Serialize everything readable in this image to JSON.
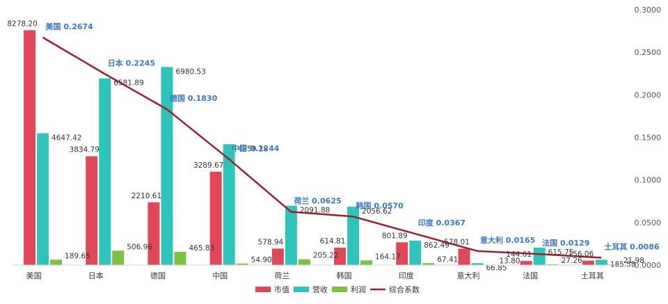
{
  "chart_data": {
    "type": "bar",
    "categories": [
      "美国",
      "日本",
      "德国",
      "中国",
      "荷兰",
      "韩国",
      "印度",
      "意大利",
      "法国",
      "土耳其"
    ],
    "series": [
      {
        "name": "市值",
        "type": "bar",
        "color": "#e0485a",
        "values": [
          8278.2,
          3834.79,
          2210.61,
          3289.67,
          578.94,
          614.81,
          801.89,
          578.01,
          144.61,
          156.06
        ],
        "labels": [
          "8278.20",
          "3834.79",
          "2210.61",
          "3289.67",
          "578.94",
          "614.81",
          "801.89",
          "578.01",
          "144.61",
          "156.06"
        ]
      },
      {
        "name": "营收",
        "type": "bar",
        "color": "#2ec4bb",
        "values": [
          4647.42,
          6581.89,
          6980.53,
          4259.28,
          2091.88,
          2056.62,
          862.49,
          66.85,
          615.75,
          185.58
        ],
        "labels": [
          "4647.42",
          "6581.89",
          "6980.53",
          "4259.28",
          "2091.88",
          "2056.62",
          "862.49",
          "66.85",
          "615.75",
          "185.58"
        ]
      },
      {
        "name": "利润",
        "type": "bar",
        "color": "#7cc242",
        "values": [
          189.65,
          506.96,
          465.83,
          54.9,
          205.22,
          164.17,
          67.41,
          13.8,
          27.26,
          21.98
        ],
        "labels": [
          "189.65",
          "506.96",
          "465.83",
          "54.90",
          "205.22",
          "164.17",
          "67.41",
          "13.80",
          "27.26",
          "21.98"
        ]
      },
      {
        "name": "综合系数",
        "type": "line",
        "axis": "right",
        "color": "#9e1f2c",
        "values": [
          0.2674,
          0.2245,
          0.183,
          0.1244,
          0.0625,
          0.057,
          0.0367,
          0.0165,
          0.0129,
          0.0086
        ],
        "labels": [
          "美国 0.2674",
          "日本 0.2245",
          "德国 0.1830",
          "中国 0.1244",
          "荷兰 0.0625",
          "韩国 0.0570",
          "印度 0.0367",
          "意大利 0.0165",
          "法国 0.0129",
          "土耳其 0.0086"
        ]
      }
    ],
    "left_axis": {
      "ylim": [
        0,
        9000
      ],
      "tick_labels_shown": false
    },
    "right_axis": {
      "ylim": [
        0,
        0.3
      ],
      "ticks": [
        "0.0000",
        "0.0500",
        "0.1000",
        "0.1500",
        "0.2000",
        "0.2500",
        "0.3000"
      ]
    },
    "grid": false,
    "legend": {
      "position": "bottom",
      "items": [
        "市值",
        "营收",
        "利润",
        "综合系数"
      ]
    },
    "title": "",
    "xlabel": "",
    "ylabel": ""
  }
}
